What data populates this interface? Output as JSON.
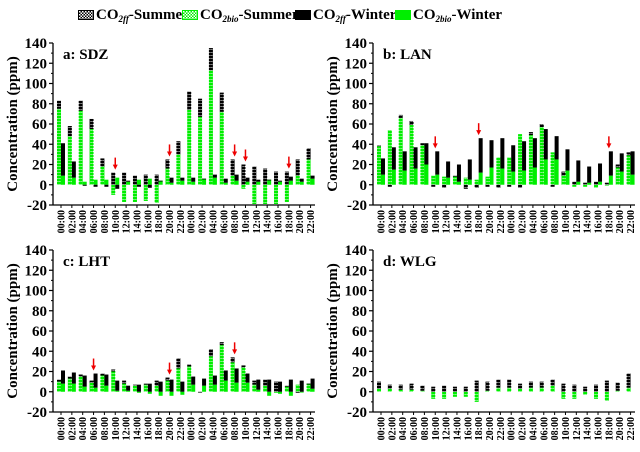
{
  "legend": {
    "items": [
      {
        "key": "ff_summer",
        "prefix": "CO",
        "sub": "2ff",
        "suffix": "-Summer",
        "swatch": "checker-black"
      },
      {
        "key": "bio_summer",
        "prefix": "CO",
        "sub": "2bio",
        "suffix": "-Summer",
        "swatch": "checker-green"
      },
      {
        "key": "ff_winter",
        "prefix": "CO",
        "sub": "2ff",
        "suffix": "-Winter",
        "swatch": "solid-black"
      },
      {
        "key": "bio_winter",
        "prefix": "CO",
        "sub": "2bio",
        "suffix": "-Winter",
        "swatch": "solid-green"
      }
    ]
  },
  "colors": {
    "green": "#00ee00",
    "black": "#000000",
    "arrow": "#ee0000"
  },
  "chart_data": [
    {
      "type": "bar",
      "title": "a: SDZ",
      "ylabel": "Concentration (ppm)",
      "ylim": [
        -20,
        140
      ],
      "yticks": [
        -20,
        0,
        20,
        40,
        60,
        80,
        100,
        120,
        140
      ],
      "categories": [
        "00:00",
        "02:00",
        "04:00",
        "06:00",
        "08:00",
        "10:00",
        "12:00",
        "14:00",
        "16:00",
        "18:00",
        "20:00",
        "22:00",
        "00:00",
        "02:00",
        "04:00",
        "06:00",
        "08:00",
        "10:00",
        "12:00",
        "14:00",
        "16:00",
        "18:00",
        "20:00",
        "22:00"
      ],
      "series": [
        {
          "name": "CO2bio-Summer",
          "values": [
            75,
            48,
            73,
            55,
            18,
            -10,
            -17,
            -17,
            -16,
            -18,
            16,
            30,
            74,
            67,
            113,
            72,
            9,
            -4,
            -19,
            -19,
            -19,
            -17,
            9,
            25
          ]
        },
        {
          "name": "CO2ff-Summer",
          "values": [
            8,
            10,
            10,
            10,
            8,
            12,
            12,
            9,
            10,
            10,
            9,
            13,
            18,
            18,
            22,
            19,
            16,
            20,
            18,
            16,
            13,
            13,
            16,
            11
          ]
        },
        {
          "name": "CO2bio-Winter",
          "values": [
            9,
            7,
            3,
            5,
            5,
            7,
            3,
            5,
            6,
            4,
            2,
            4,
            3,
            6,
            7,
            2,
            4,
            3,
            3,
            5,
            3,
            4,
            3,
            6
          ]
        },
        {
          "name": "CO2ff-Winter",
          "values": [
            32,
            16,
            -1,
            -2,
            -2,
            -4,
            1,
            -2,
            -3,
            0,
            5,
            3,
            4,
            0,
            3,
            4,
            6,
            4,
            2,
            0,
            1,
            4,
            3,
            3
          ]
        }
      ],
      "arrows": [
        5,
        10,
        16,
        17,
        21
      ]
    },
    {
      "type": "bar",
      "title": "b: LAN",
      "ylabel": "Concentration (ppm)",
      "ylim": [
        -20,
        140
      ],
      "yticks": [
        -20,
        0,
        20,
        40,
        60,
        80,
        100,
        120,
        140
      ],
      "categories": [
        "00:00",
        "02:00",
        "04:00",
        "06:00",
        "08:00",
        "10:00",
        "12:00",
        "14:00",
        "16:00",
        "18:00",
        "20:00",
        "22:00",
        "00:00",
        "02:00",
        "04:00",
        "06:00",
        "08:00",
        "10:00",
        "12:00",
        "14:00",
        "16:00",
        "18:00",
        "20:00",
        "22:00"
      ],
      "series": [
        {
          "name": "CO2bio-Summer",
          "values": [
            38,
            54,
            66,
            59,
            39,
            9,
            8,
            8,
            7,
            5,
            8,
            27,
            27,
            50,
            49,
            57,
            32,
            9,
            -2,
            -2,
            -3,
            0,
            17,
            29
          ]
        },
        {
          "name": "CO2ff-Summer",
          "values": [
            1,
            -2,
            3,
            4,
            2,
            -2,
            -3,
            1,
            -4,
            -3,
            -2,
            -3,
            -2,
            -3,
            3,
            3,
            -2,
            4,
            3,
            2,
            3,
            2,
            3,
            3
          ]
        },
        {
          "name": "CO2bio-Winter",
          "values": [
            10,
            15,
            14,
            16,
            20,
            10,
            7,
            3,
            5,
            12,
            17,
            16,
            13,
            14,
            17,
            25,
            25,
            14,
            3,
            2,
            3,
            9,
            13,
            10
          ]
        },
        {
          "name": "CO2ff-Winter",
          "values": [
            16,
            22,
            19,
            21,
            21,
            23,
            16,
            17,
            20,
            34,
            27,
            30,
            26,
            29,
            29,
            30,
            23,
            21,
            21,
            16,
            18,
            24,
            18,
            23
          ]
        }
      ],
      "arrows": [
        5,
        9,
        21
      ]
    },
    {
      "type": "bar",
      "title": "c: LHT",
      "ylabel": "Concentration (ppm)",
      "ylim": [
        -20,
        140
      ],
      "yticks": [
        -20,
        0,
        20,
        40,
        60,
        80,
        100,
        120,
        140
      ],
      "categories": [
        "00:00",
        "02:00",
        "04:00",
        "06:00",
        "08:00",
        "10:00",
        "12:00",
        "14:00",
        "16:00",
        "18:00",
        "20:00",
        "22:00",
        "00:00",
        "02:00",
        "04:00",
        "06:00",
        "08:00",
        "10:00",
        "12:00",
        "14:00",
        "16:00",
        "18:00",
        "20:00",
        "22:00"
      ],
      "series": [
        {
          "name": "CO2bio-Summer",
          "values": [
            10,
            13,
            15,
            9,
            16,
            20,
            8,
            6,
            7,
            6,
            11,
            23,
            25,
            0,
            35,
            46,
            29,
            24,
            7,
            6,
            -1,
            5,
            7,
            8
          ]
        },
        {
          "name": "CO2ff-Summer",
          "values": [
            2,
            2,
            2,
            2,
            2,
            2,
            3,
            1,
            1,
            5,
            3,
            10,
            2,
            0,
            7,
            3,
            5,
            2,
            4,
            6,
            10,
            1,
            -1,
            0
          ]
        },
        {
          "name": "CO2bio-Winter",
          "values": [
            8,
            8,
            5,
            4,
            6,
            1,
            1,
            -1,
            -2,
            -4,
            -4,
            -3,
            7,
            6,
            7,
            11,
            9,
            9,
            2,
            -4,
            -2,
            -4,
            0,
            3
          ]
        },
        {
          "name": "CO2ff-Winter",
          "values": [
            13,
            11,
            11,
            14,
            11,
            10,
            5,
            7,
            8,
            10,
            12,
            10,
            8,
            7,
            9,
            10,
            14,
            9,
            10,
            12,
            10,
            12,
            11,
            10
          ]
        }
      ],
      "arrows": [
        3,
        10,
        16
      ]
    },
    {
      "type": "bar",
      "title": "d: WLG",
      "ylabel": "Concentration (ppm)",
      "ylim": [
        -20,
        140
      ],
      "yticks": [
        -20,
        0,
        20,
        40,
        60,
        80,
        100,
        120,
        140
      ],
      "categories": [
        "00:00",
        "02:00",
        "04:00",
        "06:00",
        "08:00",
        "10:00",
        "12:00",
        "14:00",
        "16:00",
        "18:00",
        "20:00",
        "22:00",
        "00:00",
        "02:00",
        "04:00",
        "06:00",
        "08:00",
        "10:00",
        "12:00",
        "14:00",
        "16:00",
        "18:00",
        "20:00",
        "22:00"
      ],
      "series": [
        {
          "name": "CO2bio-Summer",
          "values": [
            3,
            3,
            2,
            2,
            1,
            -7,
            -7,
            -5,
            -5,
            -10,
            1,
            4,
            4,
            3,
            4,
            4,
            6,
            -7,
            -7,
            -3,
            -7,
            -9,
            1,
            4
          ]
        },
        {
          "name": "CO2ff-Summer",
          "values": [
            7,
            4,
            5,
            6,
            5,
            5,
            6,
            5,
            5,
            11,
            9,
            8,
            8,
            5,
            6,
            6,
            6,
            8,
            7,
            5,
            7,
            11,
            8,
            14
          ]
        }
      ],
      "arrows": []
    }
  ]
}
